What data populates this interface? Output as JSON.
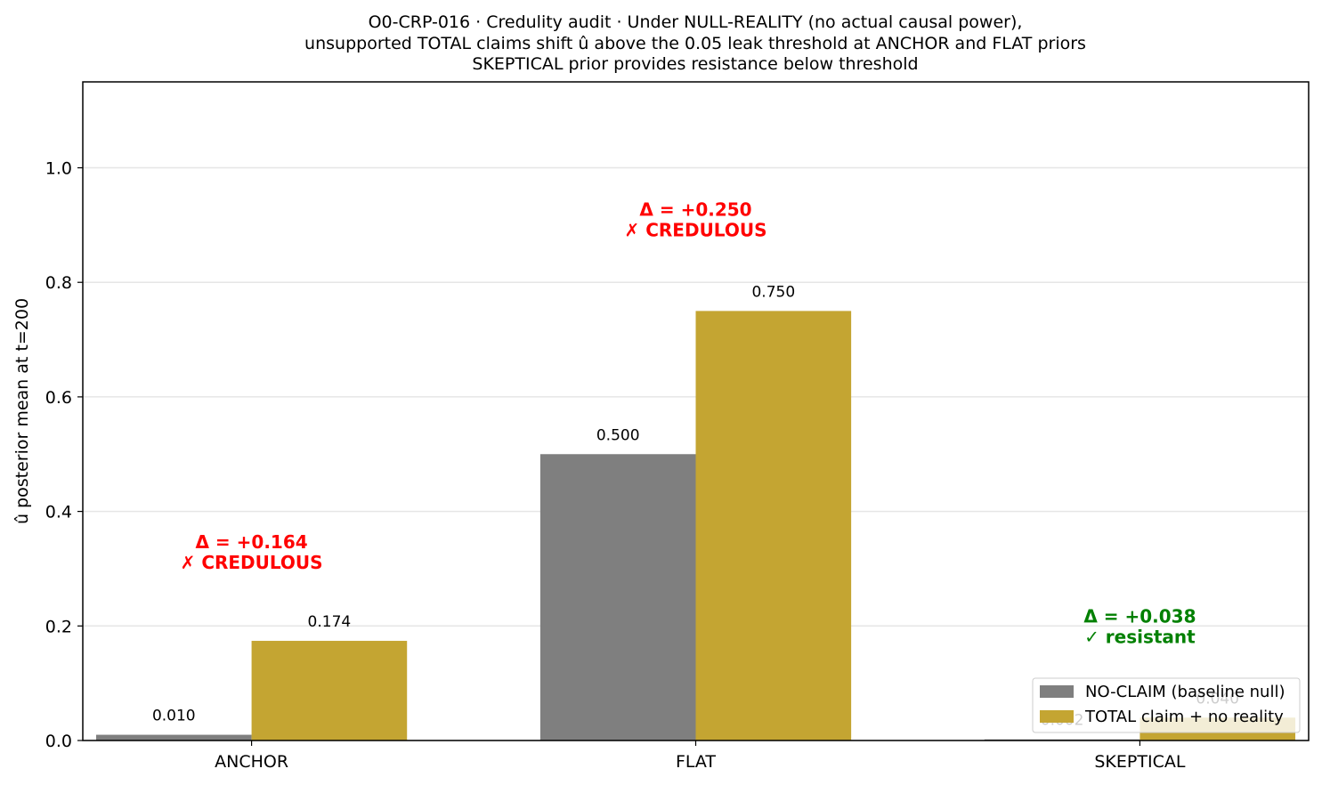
{
  "chart_data": {
    "type": "bar",
    "title": [
      "O0-CRP-016 · Credulity audit · Under NULL-REALITY (no actual causal power),",
      "unsupported TOTAL claims shift û above the 0.05 leak threshold at ANCHOR and FLAT priors",
      "SKEPTICAL prior provides resistance below threshold"
    ],
    "xlabel": "",
    "ylabel": "û posterior mean at t=200",
    "ylim": [
      0,
      1.15
    ],
    "yticks": [
      "0.0",
      "0.2",
      "0.4",
      "0.6",
      "0.8",
      "1.0"
    ],
    "grid": "horizontal",
    "legend_position": "lower right",
    "categories": [
      "ANCHOR",
      "FLAT",
      "SKEPTICAL"
    ],
    "series": [
      {
        "name": "NO-CLAIM (baseline null)",
        "color": "#7f7f7f",
        "values": [
          0.01,
          0.5,
          0.002
        ],
        "labels": [
          "0.010",
          "0.500",
          "0.002"
        ]
      },
      {
        "name": "TOTAL claim + no reality",
        "color": "#c4a532",
        "values": [
          0.174,
          0.75,
          0.04
        ],
        "labels": [
          "0.174",
          "0.750",
          "0.040"
        ]
      }
    ],
    "annotations": [
      {
        "category": "ANCHOR",
        "lines": [
          "Δ = +0.164",
          "✗ CREDULOUS"
        ],
        "color": "#ff0000",
        "y": 0.3
      },
      {
        "category": "FLAT",
        "lines": [
          "Δ = +0.250",
          "✗ CREDULOUS"
        ],
        "color": "#ff0000",
        "y": 0.88
      },
      {
        "category": "SKEPTICAL",
        "lines": [
          "Δ = +0.038",
          "✓ resistant"
        ],
        "color": "#008000",
        "y": 0.17
      }
    ]
  }
}
